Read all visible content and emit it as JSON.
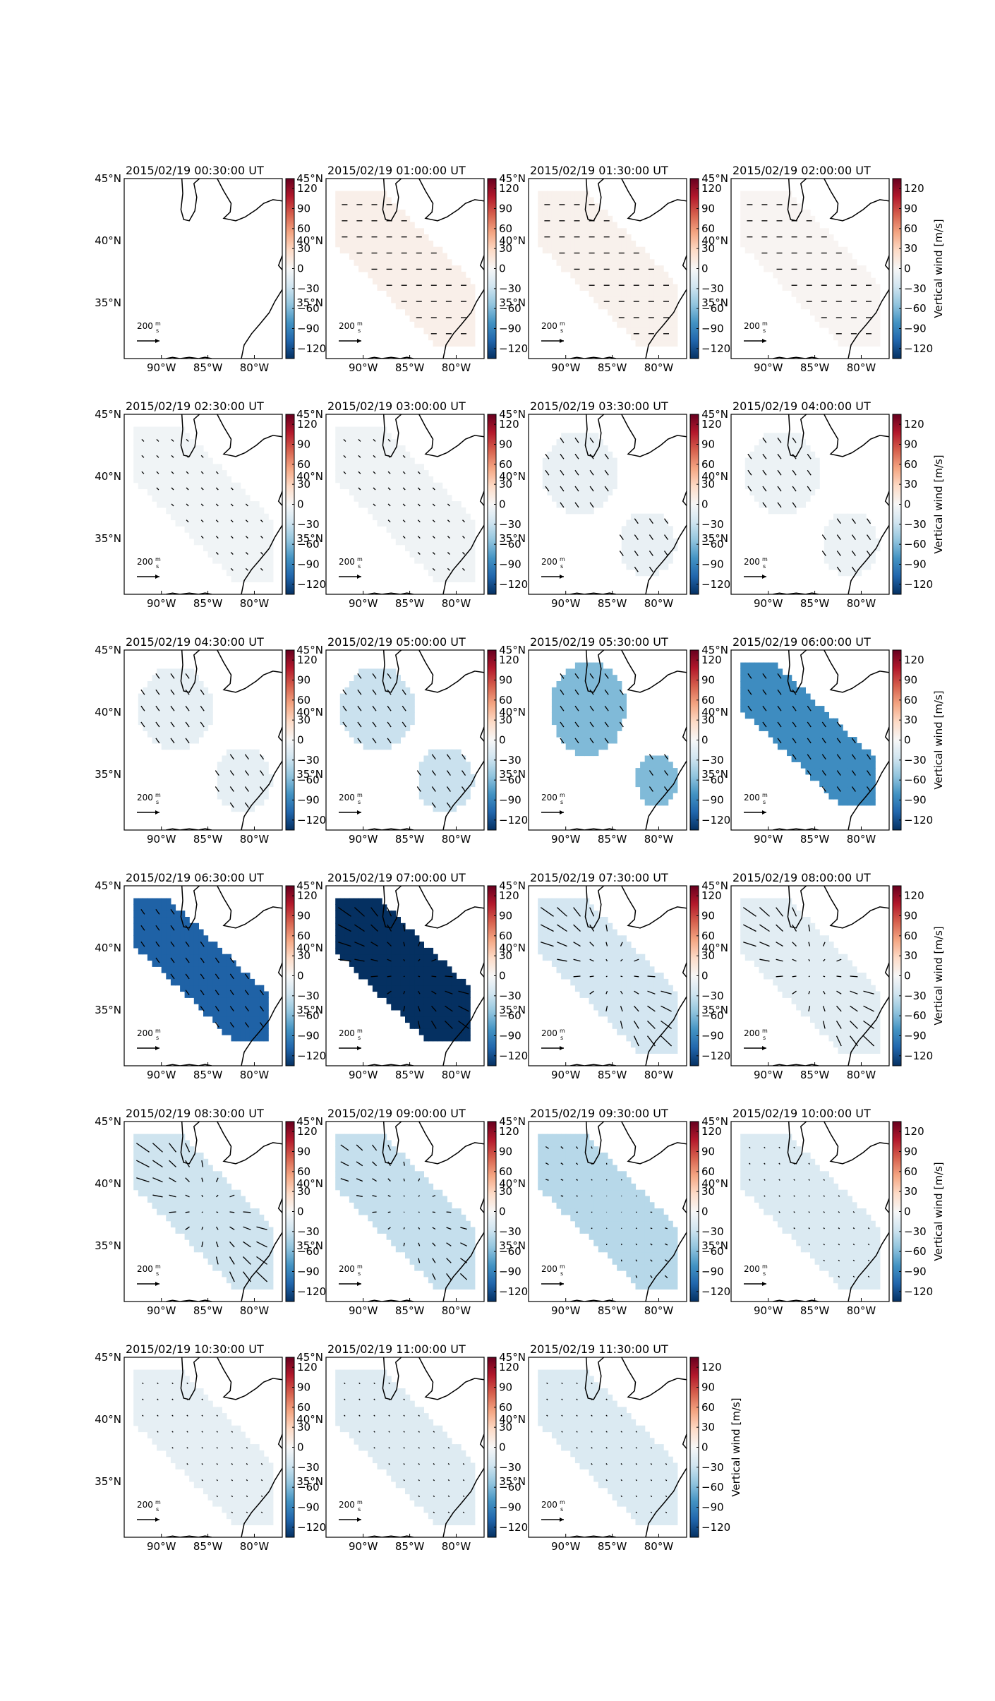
{
  "figure": {
    "panels": [
      {
        "title": "2015/02/19 00:30:00 UT",
        "w": 0,
        "arrows": "none",
        "mask": "empty"
      },
      {
        "title": "2015/02/19 01:00:00 UT",
        "w": 8,
        "arrows": "east",
        "mask": "full"
      },
      {
        "title": "2015/02/19 01:30:00 UT",
        "w": 6,
        "arrows": "east",
        "mask": "full"
      },
      {
        "title": "2015/02/19 02:00:00 UT",
        "w": 3,
        "arrows": "east",
        "mask": "full"
      },
      {
        "title": "2015/02/19 02:30:00 UT",
        "w": -5,
        "arrows": "southeast-small",
        "mask": "full"
      },
      {
        "title": "2015/02/19 03:00:00 UT",
        "w": -6,
        "arrows": "southeast-small",
        "mask": "full"
      },
      {
        "title": "2015/02/19 03:30:00 UT",
        "w": -10,
        "arrows": "southeast",
        "mask": "split"
      },
      {
        "title": "2015/02/19 04:00:00 UT",
        "w": -8,
        "arrows": "southeast",
        "mask": "split"
      },
      {
        "title": "2015/02/19 04:30:00 UT",
        "w": -12,
        "arrows": "southeast",
        "mask": "split"
      },
      {
        "title": "2015/02/19 05:00:00 UT",
        "w": -30,
        "arrows": "southeast",
        "mask": "split"
      },
      {
        "title": "2015/02/19 05:30:00 UT",
        "w": -60,
        "arrows": "southeast",
        "mask": "split-tight"
      },
      {
        "title": "2015/02/19 06:00:00 UT",
        "w": -85,
        "arrows": "southeast",
        "mask": "diag"
      },
      {
        "title": "2015/02/19 06:30:00 UT",
        "w": -110,
        "arrows": "southeast",
        "mask": "diag"
      },
      {
        "title": "2015/02/19 07:00:00 UT",
        "w": -135,
        "arrows": "radial",
        "mask": "diag-wide"
      },
      {
        "title": "2015/02/19 07:30:00 UT",
        "w": -25,
        "arrows": "radial",
        "mask": "full"
      },
      {
        "title": "2015/02/19 08:00:00 UT",
        "w": -15,
        "arrows": "radial",
        "mask": "full"
      },
      {
        "title": "2015/02/19 08:30:00 UT",
        "w": -28,
        "arrows": "radial",
        "mask": "full"
      },
      {
        "title": "2015/02/19 09:00:00 UT",
        "w": -32,
        "arrows": "radial-small",
        "mask": "full"
      },
      {
        "title": "2015/02/19 09:30:00 UT",
        "w": -38,
        "arrows": "small",
        "mask": "full"
      },
      {
        "title": "2015/02/19 10:00:00 UT",
        "w": -20,
        "arrows": "tiny",
        "mask": "full"
      },
      {
        "title": "2015/02/19 10:30:00 UT",
        "w": -12,
        "arrows": "tiny",
        "mask": "full"
      },
      {
        "title": "2015/02/19 11:00:00 UT",
        "w": -18,
        "arrows": "tiny",
        "mask": "full"
      },
      {
        "title": "2015/02/19 11:30:00 UT",
        "w": -20,
        "arrows": "tiny",
        "mask": "full"
      }
    ],
    "lat_ticks": [
      "45°N",
      "40°N",
      "35°N"
    ],
    "lon_ticks": [
      "90°W",
      "85°W",
      "80°W"
    ],
    "colorbar_ticks": [
      "120",
      "90",
      "60",
      "30",
      "0",
      "−30",
      "−60",
      "−90",
      "−120"
    ],
    "colorbar_label": "Vertical wind [m/s]",
    "colorbar_range": [
      -135,
      135
    ],
    "quiver_key_value": "200",
    "quiver_key_unit_num": "m",
    "quiver_key_unit_den": "s"
  },
  "chart_data": {
    "type": "heatmap",
    "title": "",
    "colorbar": {
      "label": "Vertical wind [m/s]",
      "range": [
        -135,
        135
      ],
      "ticks": [
        120,
        90,
        60,
        30,
        0,
        -30,
        -60,
        -90,
        -120
      ],
      "colormap": "RdBu_r"
    },
    "x_axis": {
      "ticks": [
        "90°W",
        "85°W",
        "80°W"
      ],
      "range_deg": [
        -94,
        -77
      ]
    },
    "y_axis": {
      "ticks": [
        "45°N",
        "40°N",
        "35°N"
      ],
      "range_deg": [
        30.5,
        45
      ]
    },
    "quiver_key": "200 m/s",
    "series": [
      {
        "time": "2015/02/19 00:30:00 UT",
        "mean_vertical_wind": 0
      },
      {
        "time": "2015/02/19 01:00:00 UT",
        "mean_vertical_wind": 8
      },
      {
        "time": "2015/02/19 01:30:00 UT",
        "mean_vertical_wind": 6
      },
      {
        "time": "2015/02/19 02:00:00 UT",
        "mean_vertical_wind": 3
      },
      {
        "time": "2015/02/19 02:30:00 UT",
        "mean_vertical_wind": -5
      },
      {
        "time": "2015/02/19 03:00:00 UT",
        "mean_vertical_wind": -6
      },
      {
        "time": "2015/02/19 03:30:00 UT",
        "mean_vertical_wind": -10
      },
      {
        "time": "2015/02/19 04:00:00 UT",
        "mean_vertical_wind": -8
      },
      {
        "time": "2015/02/19 04:30:00 UT",
        "mean_vertical_wind": -12
      },
      {
        "time": "2015/02/19 05:00:00 UT",
        "mean_vertical_wind": -30
      },
      {
        "time": "2015/02/19 05:30:00 UT",
        "mean_vertical_wind": -60
      },
      {
        "time": "2015/02/19 06:00:00 UT",
        "mean_vertical_wind": -85
      },
      {
        "time": "2015/02/19 06:30:00 UT",
        "mean_vertical_wind": -110
      },
      {
        "time": "2015/02/19 07:00:00 UT",
        "mean_vertical_wind": -135
      },
      {
        "time": "2015/02/19 07:30:00 UT",
        "mean_vertical_wind": -25
      },
      {
        "time": "2015/02/19 08:00:00 UT",
        "mean_vertical_wind": -15
      },
      {
        "time": "2015/02/19 08:30:00 UT",
        "mean_vertical_wind": -28
      },
      {
        "time": "2015/02/19 09:00:00 UT",
        "mean_vertical_wind": -32
      },
      {
        "time": "2015/02/19 09:30:00 UT",
        "mean_vertical_wind": -38
      },
      {
        "time": "2015/02/19 10:00:00 UT",
        "mean_vertical_wind": -20
      },
      {
        "time": "2015/02/19 10:30:00 UT",
        "mean_vertical_wind": -12
      },
      {
        "time": "2015/02/19 11:00:00 UT",
        "mean_vertical_wind": -18
      },
      {
        "time": "2015/02/19 11:30:00 UT",
        "mean_vertical_wind": -20
      }
    ]
  }
}
